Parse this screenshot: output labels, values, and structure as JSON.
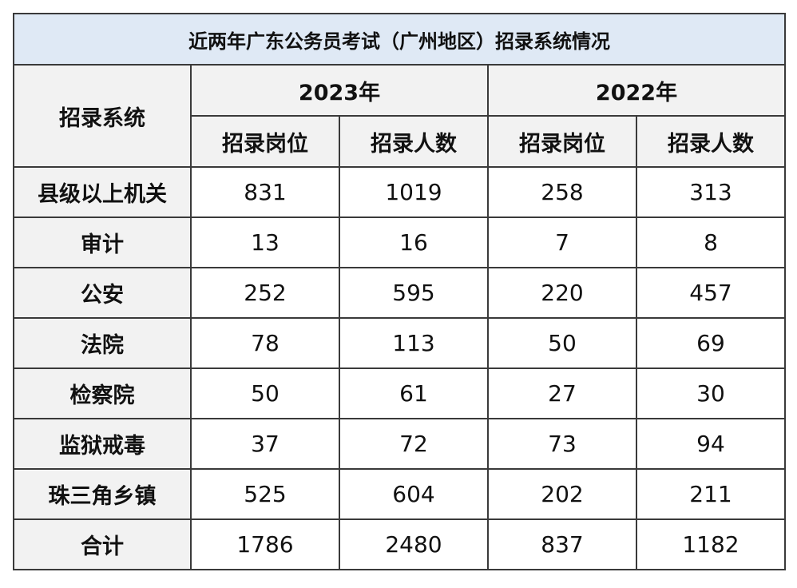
{
  "title": "近两年广东公务员考试（广州地区）招录系统情况",
  "header": {
    "system_label": "招录系统",
    "years": [
      "2023年",
      "2022年"
    ],
    "sub_headers": [
      "招录岗位",
      "招录人数",
      "招录岗位",
      "招录人数"
    ]
  },
  "rows": [
    {
      "label": "县级以上机关",
      "values": [
        "831",
        "1019",
        "258",
        "313"
      ]
    },
    {
      "label": "审计",
      "values": [
        "13",
        "16",
        "7",
        "8"
      ]
    },
    {
      "label": "公安",
      "values": [
        "252",
        "595",
        "220",
        "457"
      ]
    },
    {
      "label": "法院",
      "values": [
        "78",
        "113",
        "50",
        "69"
      ]
    },
    {
      "label": "检察院",
      "values": [
        "50",
        "61",
        "27",
        "30"
      ]
    },
    {
      "label": "监狱戒毒",
      "values": [
        "37",
        "72",
        "73",
        "94"
      ]
    },
    {
      "label": "珠三角乡镇",
      "values": [
        "525",
        "604",
        "202",
        "211"
      ]
    },
    {
      "label": "合计",
      "values": [
        "1786",
        "2480",
        "837",
        "1182"
      ]
    }
  ],
  "colors": {
    "title_bg": "#dfe9f5",
    "header_bg": "#f2f2f2",
    "border": "#3a3a3a"
  }
}
